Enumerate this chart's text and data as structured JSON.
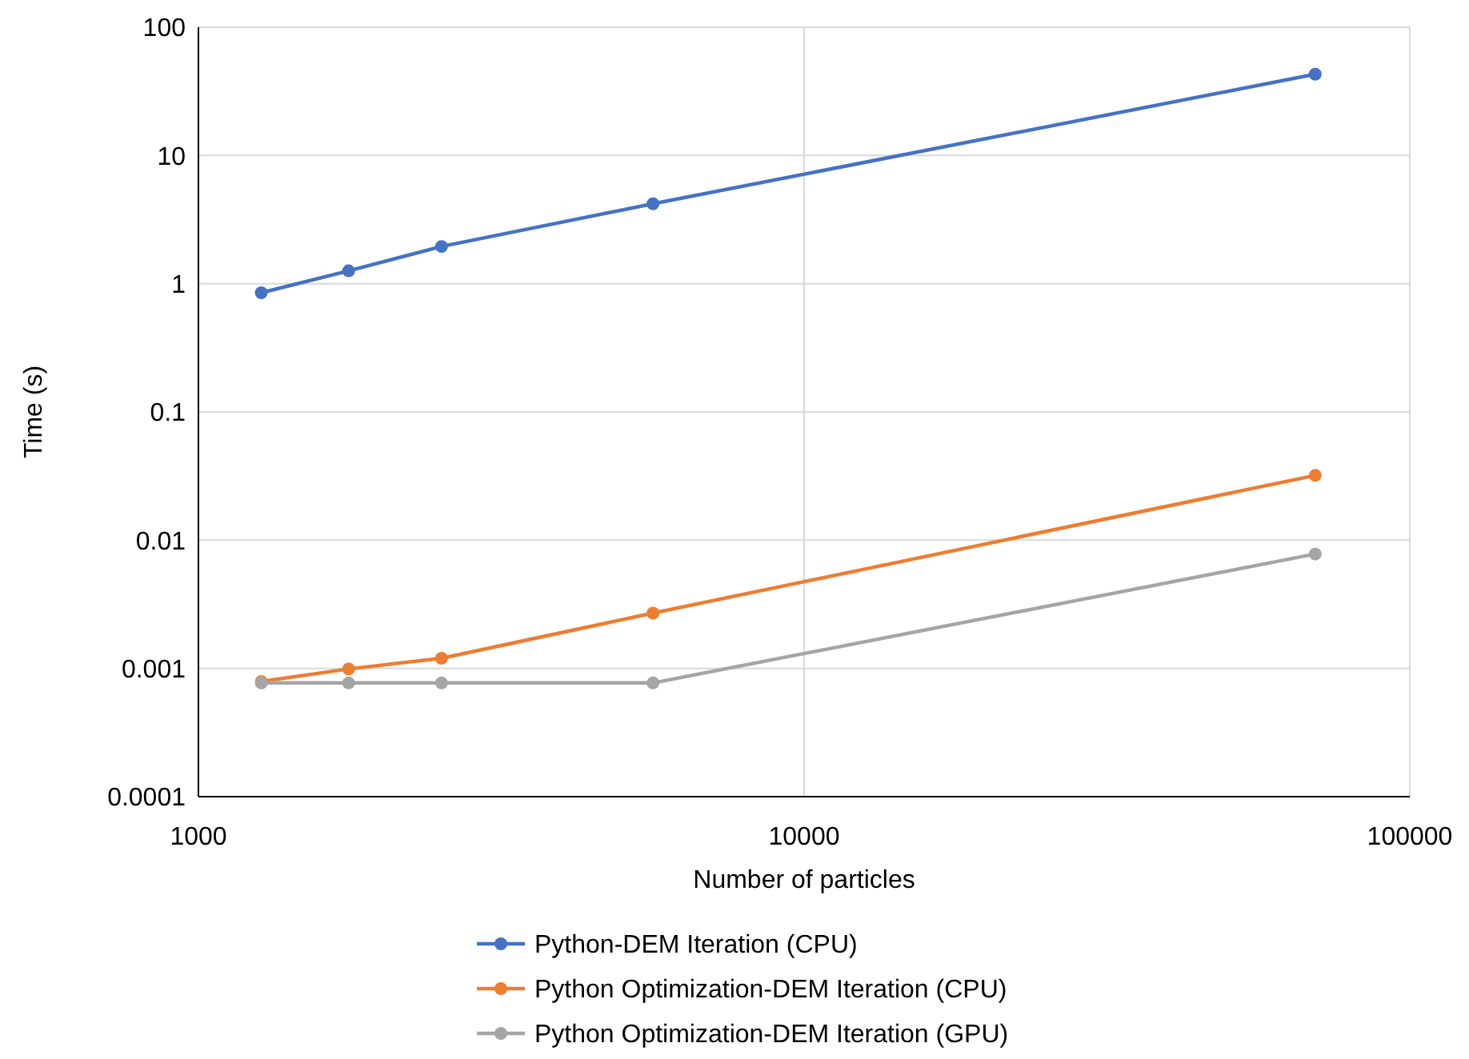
{
  "chart_data": {
    "type": "line",
    "xlabel": "Number of particles",
    "ylabel": "Time (s)",
    "log": "xy",
    "grid": true,
    "legend": "bottom",
    "marker": "circle",
    "line_style": "solid",
    "x": [
      1270,
      1770,
      2520,
      5630,
      69800
    ],
    "xlim": [
      1000,
      100000
    ],
    "xticks": [
      1000,
      10000,
      100000
    ],
    "ylim": [
      0.0001,
      100
    ],
    "yticks": [
      0.0001,
      0.001,
      0.01,
      0.1,
      1,
      10,
      100
    ],
    "series": [
      {
        "name": "Python-DEM Iteration (CPU)",
        "color": "#4472c4",
        "values": [
          0.85,
          1.26,
          1.95,
          4.2,
          43
        ]
      },
      {
        "name": "Python Optimization-DEM Iteration (CPU)",
        "color": "#ed7d31",
        "values": [
          0.00079,
          0.00099,
          0.0012,
          0.0027,
          0.032
        ]
      },
      {
        "name": "Python Optimization-DEM Iteration (GPU)",
        "color": "#a5a5a5",
        "values": [
          0.00077,
          0.00077,
          0.00077,
          0.00077,
          0.0078
        ]
      }
    ]
  }
}
